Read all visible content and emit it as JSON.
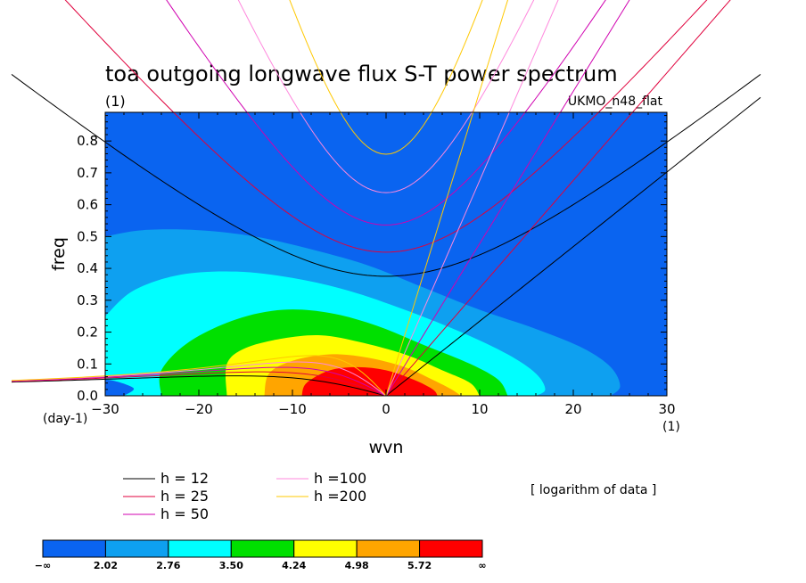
{
  "chart_data": {
    "type": "heatmap",
    "title": "toa outgoing longwave flux S-T power spectrum",
    "title_units": "(1)",
    "model_label": "UKMO_n48_flat",
    "xlabel": "wvn",
    "ylabel": "freq",
    "x_units": "(1)",
    "y_units": "(day-1)",
    "xlim": [
      -30,
      30
    ],
    "ylim": [
      0,
      0.89
    ],
    "xticks": [
      "−30",
      "−20",
      "−10",
      "0",
      "10",
      "20",
      "30"
    ],
    "yticks": [
      "0.0",
      "0.1",
      "0.2",
      "0.3",
      "0.4",
      "0.5",
      "0.6",
      "0.7",
      "0.8"
    ],
    "colorbar_note": "[ logarithm of data ]",
    "colorbar": {
      "ticks": [
        "−∞",
        "2.02",
        "2.76",
        "3.50",
        "4.24",
        "4.98",
        "5.72",
        "∞"
      ],
      "colors": [
        "#0a64f0",
        "#0ea0f0",
        "#00ffff",
        "#00e000",
        "#ffff00",
        "#ffa500",
        "#ff0000"
      ]
    },
    "contour_levels": [
      {
        "level": "2.02",
        "color": "#0ea0f0",
        "outline": [
          [
            -30,
            0.5
          ],
          [
            -26,
            0.52
          ],
          [
            -20,
            0.52
          ],
          [
            -14,
            0.5
          ],
          [
            -8,
            0.46
          ],
          [
            -2,
            0.41
          ],
          [
            4,
            0.34
          ],
          [
            10,
            0.27
          ],
          [
            16,
            0.21
          ],
          [
            21,
            0.15
          ],
          [
            24,
            0.09
          ],
          [
            25,
            0.03
          ],
          [
            24,
            0
          ]
        ]
      },
      {
        "level": "2.76",
        "color": "#00ffff",
        "outline": [
          [
            -30,
            0.25
          ],
          [
            -27,
            0.33
          ],
          [
            -22,
            0.38
          ],
          [
            -16,
            0.39
          ],
          [
            -10,
            0.37
          ],
          [
            -4,
            0.33
          ],
          [
            2,
            0.27
          ],
          [
            8,
            0.2
          ],
          [
            13,
            0.13
          ],
          [
            16,
            0.07
          ],
          [
            17,
            0.02
          ],
          [
            16,
            0
          ]
        ]
      },
      {
        "level": "3.50",
        "color": "#00e000",
        "outline": [
          [
            -24,
            0
          ],
          [
            -24,
            0.08
          ],
          [
            -21,
            0.17
          ],
          [
            -16,
            0.24
          ],
          [
            -11,
            0.27
          ],
          [
            -6,
            0.26
          ],
          [
            -1,
            0.22
          ],
          [
            4,
            0.16
          ],
          [
            9,
            0.1
          ],
          [
            12,
            0.05
          ],
          [
            13,
            0
          ]
        ]
      },
      {
        "level": "4.24",
        "color": "#ffff00",
        "outline": [
          [
            -17,
            0
          ],
          [
            -17,
            0.1
          ],
          [
            -15,
            0.15
          ],
          [
            -11,
            0.18
          ],
          [
            -7,
            0.19
          ],
          [
            -3,
            0.17
          ],
          [
            2,
            0.13
          ],
          [
            6,
            0.08
          ],
          [
            9,
            0.04
          ],
          [
            10,
            0
          ]
        ]
      },
      {
        "level": "4.98",
        "color": "#ffa500",
        "outline": [
          [
            -13,
            0
          ],
          [
            -12.5,
            0.07
          ],
          [
            -10,
            0.11
          ],
          [
            -6,
            0.13
          ],
          [
            -2,
            0.12
          ],
          [
            2,
            0.09
          ],
          [
            5,
            0.05
          ],
          [
            7,
            0.02
          ],
          [
            8,
            0
          ]
        ]
      },
      {
        "level": "5.72",
        "color": "#ff0000",
        "outline": [
          [
            -9,
            0
          ],
          [
            -8.5,
            0.04
          ],
          [
            -6,
            0.08
          ],
          [
            -3,
            0.09
          ],
          [
            0,
            0.08
          ],
          [
            3,
            0.05
          ],
          [
            5,
            0.02
          ],
          [
            5.5,
            0
          ]
        ]
      }
    ],
    "deep_blue_corner": [
      [
        -30,
        0
      ],
      [
        -30,
        0.05
      ],
      [
        -27,
        0.025
      ],
      [
        -28,
        0
      ]
    ],
    "dispersion_curves": [
      {
        "name": "h = 12",
        "label": "h = 12",
        "color": "#000000"
      },
      {
        "name": "h = 25",
        "label": "h = 25",
        "color": "#e0003c"
      },
      {
        "name": "h = 50",
        "label": "h = 50",
        "color": "#d000b0"
      },
      {
        "name": "h =100",
        "label": "h =100",
        "color": "#ff88dd"
      },
      {
        "name": "h =200",
        "label": "h =200",
        "color": "#ffc800"
      }
    ]
  }
}
